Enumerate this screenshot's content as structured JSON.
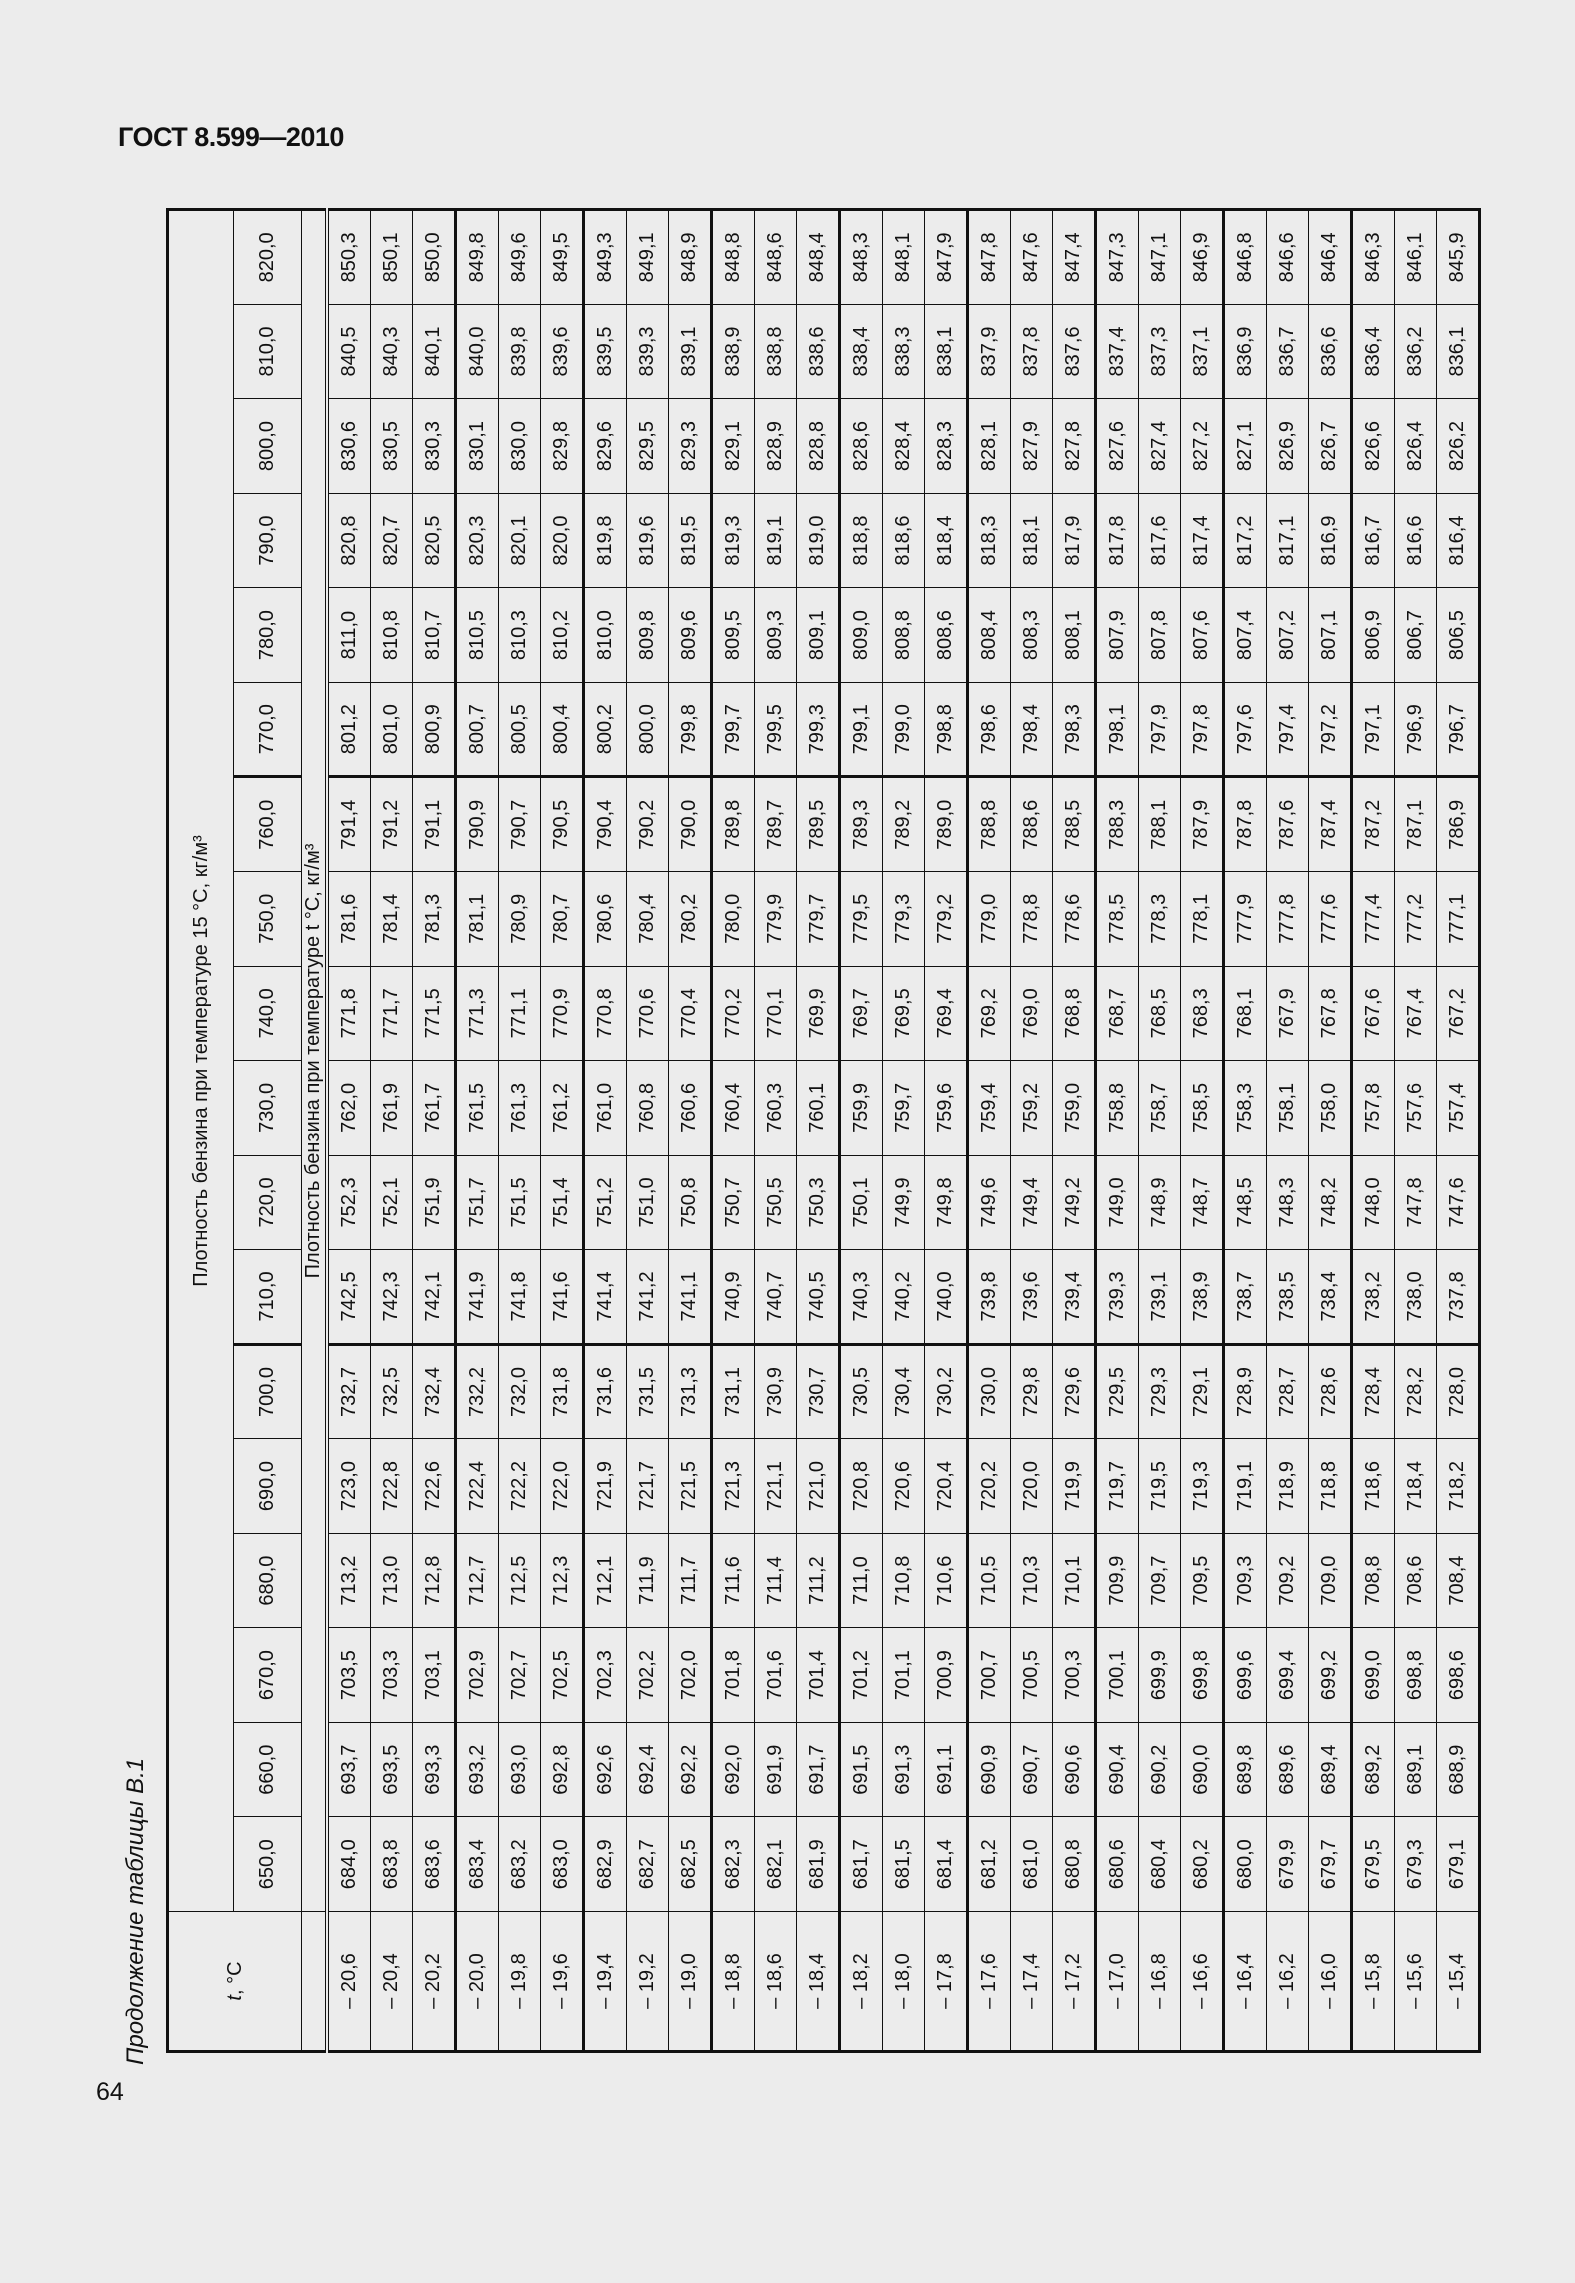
{
  "header": {
    "doc_id": "ГОСТ 8.599—2010"
  },
  "caption": "Продолжение таблицы В.1",
  "page_number": "64",
  "table": {
    "t_header": "t, °C",
    "group_header": "Плотность бензина при температуре 15 °C, кг/м³",
    "sub_header": "Плотность бензина при температуре t °C, кг/м³",
    "columns": [
      "650,0",
      "660,0",
      "670,0",
      "680,0",
      "690,0",
      "700,0",
      "710,0",
      "720,0",
      "730,0",
      "740,0",
      "750,0",
      "760,0",
      "770,0",
      "780,0",
      "790,0",
      "800,0",
      "810,0",
      "820,0"
    ],
    "rows": [
      {
        "t": "– 20,6",
        "v": [
          "684,0",
          "693,7",
          "703,5",
          "713,2",
          "723,0",
          "732,7",
          "742,5",
          "752,3",
          "762,0",
          "771,8",
          "781,6",
          "791,4",
          "801,2",
          "811,0",
          "820,8",
          "830,6",
          "840,5",
          "850,3"
        ]
      },
      {
        "t": "– 20,4",
        "v": [
          "683,8",
          "693,5",
          "703,3",
          "713,0",
          "722,8",
          "732,5",
          "742,3",
          "752,1",
          "761,9",
          "771,7",
          "781,4",
          "791,2",
          "801,0",
          "810,8",
          "820,7",
          "830,5",
          "840,3",
          "850,1"
        ]
      },
      {
        "t": "– 20,2",
        "v": [
          "683,6",
          "693,3",
          "703,1",
          "712,8",
          "722,6",
          "732,4",
          "742,1",
          "751,9",
          "761,7",
          "771,5",
          "781,3",
          "791,1",
          "800,9",
          "810,7",
          "820,5",
          "830,3",
          "840,1",
          "850,0"
        ]
      },
      {
        "t": "– 20,0",
        "v": [
          "683,4",
          "693,2",
          "702,9",
          "712,7",
          "722,4",
          "732,2",
          "741,9",
          "751,7",
          "761,5",
          "771,3",
          "781,1",
          "790,9",
          "800,7",
          "810,5",
          "820,3",
          "830,1",
          "840,0",
          "849,8"
        ]
      },
      {
        "t": "– 19,8",
        "v": [
          "683,2",
          "693,0",
          "702,7",
          "712,5",
          "722,2",
          "732,0",
          "741,8",
          "751,5",
          "761,3",
          "771,1",
          "780,9",
          "790,7",
          "800,5",
          "810,3",
          "820,1",
          "830,0",
          "839,8",
          "849,6"
        ]
      },
      {
        "t": "– 19,6",
        "v": [
          "683,0",
          "692,8",
          "702,5",
          "712,3",
          "722,0",
          "731,8",
          "741,6",
          "751,4",
          "761,2",
          "770,9",
          "780,7",
          "790,5",
          "800,4",
          "810,2",
          "820,0",
          "829,8",
          "839,6",
          "849,5"
        ]
      },
      {
        "t": "– 19,4",
        "v": [
          "682,9",
          "692,6",
          "702,3",
          "712,1",
          "721,9",
          "731,6",
          "741,4",
          "751,2",
          "761,0",
          "770,8",
          "780,6",
          "790,4",
          "800,2",
          "810,0",
          "819,8",
          "829,6",
          "839,5",
          "849,3"
        ]
      },
      {
        "t": "– 19,2",
        "v": [
          "682,7",
          "692,4",
          "702,2",
          "711,9",
          "721,7",
          "731,5",
          "741,2",
          "751,0",
          "760,8",
          "770,6",
          "780,4",
          "790,2",
          "800,0",
          "809,8",
          "819,6",
          "829,5",
          "839,3",
          "849,1"
        ]
      },
      {
        "t": "– 19,0",
        "v": [
          "682,5",
          "692,2",
          "702,0",
          "711,7",
          "721,5",
          "731,3",
          "741,1",
          "750,8",
          "760,6",
          "770,4",
          "780,2",
          "790,0",
          "799,8",
          "809,6",
          "819,5",
          "829,3",
          "839,1",
          "848,9"
        ]
      },
      {
        "t": "– 18,8",
        "v": [
          "682,3",
          "692,0",
          "701,8",
          "711,6",
          "721,3",
          "731,1",
          "740,9",
          "750,7",
          "760,4",
          "770,2",
          "780,0",
          "789,8",
          "799,7",
          "809,5",
          "819,3",
          "829,1",
          "838,9",
          "848,8"
        ]
      },
      {
        "t": "– 18,6",
        "v": [
          "682,1",
          "691,9",
          "701,6",
          "711,4",
          "721,1",
          "730,9",
          "740,7",
          "750,5",
          "760,3",
          "770,1",
          "779,9",
          "789,7",
          "799,5",
          "809,3",
          "819,1",
          "828,9",
          "838,8",
          "848,6"
        ]
      },
      {
        "t": "– 18,4",
        "v": [
          "681,9",
          "691,7",
          "701,4",
          "711,2",
          "721,0",
          "730,7",
          "740,5",
          "750,3",
          "760,1",
          "769,9",
          "779,7",
          "789,5",
          "799,3",
          "809,1",
          "819,0",
          "828,8",
          "838,6",
          "848,4"
        ]
      },
      {
        "t": "– 18,2",
        "v": [
          "681,7",
          "691,5",
          "701,2",
          "711,0",
          "720,8",
          "730,5",
          "740,3",
          "750,1",
          "759,9",
          "769,7",
          "779,5",
          "789,3",
          "799,1",
          "809,0",
          "818,8",
          "828,6",
          "838,4",
          "848,3"
        ]
      },
      {
        "t": "– 18,0",
        "v": [
          "681,5",
          "691,3",
          "701,1",
          "710,8",
          "720,6",
          "730,4",
          "740,2",
          "749,9",
          "759,7",
          "769,5",
          "779,3",
          "789,2",
          "799,0",
          "808,8",
          "818,6",
          "828,4",
          "838,3",
          "848,1"
        ]
      },
      {
        "t": "– 17,8",
        "v": [
          "681,4",
          "691,1",
          "700,9",
          "710,6",
          "720,4",
          "730,2",
          "740,0",
          "749,8",
          "759,6",
          "769,4",
          "779,2",
          "789,0",
          "798,8",
          "808,6",
          "818,4",
          "828,3",
          "838,1",
          "847,9"
        ]
      },
      {
        "t": "– 17,6",
        "v": [
          "681,2",
          "690,9",
          "700,7",
          "710,5",
          "720,2",
          "730,0",
          "739,8",
          "749,6",
          "759,4",
          "769,2",
          "779,0",
          "788,8",
          "798,6",
          "808,4",
          "818,3",
          "828,1",
          "837,9",
          "847,8"
        ]
      },
      {
        "t": "– 17,4",
        "v": [
          "681,0",
          "690,7",
          "700,5",
          "710,3",
          "720,0",
          "729,8",
          "739,6",
          "749,4",
          "759,2",
          "769,0",
          "778,8",
          "788,6",
          "798,4",
          "808,3",
          "818,1",
          "827,9",
          "837,8",
          "847,6"
        ]
      },
      {
        "t": "– 17,2",
        "v": [
          "680,8",
          "690,6",
          "700,3",
          "710,1",
          "719,9",
          "729,6",
          "739,4",
          "749,2",
          "759,0",
          "768,8",
          "778,6",
          "788,5",
          "798,3",
          "808,1",
          "817,9",
          "827,8",
          "837,6",
          "847,4"
        ]
      },
      {
        "t": "– 17,0",
        "v": [
          "680,6",
          "690,4",
          "700,1",
          "709,9",
          "719,7",
          "729,5",
          "739,3",
          "749,0",
          "758,8",
          "768,7",
          "778,5",
          "788,3",
          "798,1",
          "807,9",
          "817,8",
          "827,6",
          "837,4",
          "847,3"
        ]
      },
      {
        "t": "– 16,8",
        "v": [
          "680,4",
          "690,2",
          "699,9",
          "709,7",
          "719,5",
          "729,3",
          "739,1",
          "748,9",
          "758,7",
          "768,5",
          "778,3",
          "788,1",
          "797,9",
          "807,8",
          "817,6",
          "827,4",
          "837,3",
          "847,1"
        ]
      },
      {
        "t": "– 16,6",
        "v": [
          "680,2",
          "690,0",
          "699,8",
          "709,5",
          "719,3",
          "729,1",
          "738,9",
          "748,7",
          "758,5",
          "768,3",
          "778,1",
          "787,9",
          "797,8",
          "807,6",
          "817,4",
          "827,2",
          "837,1",
          "846,9"
        ]
      },
      {
        "t": "– 16,4",
        "v": [
          "680,0",
          "689,8",
          "699,6",
          "709,3",
          "719,1",
          "728,9",
          "738,7",
          "748,5",
          "758,3",
          "768,1",
          "777,9",
          "787,8",
          "797,6",
          "807,4",
          "817,2",
          "827,1",
          "836,9",
          "846,8"
        ]
      },
      {
        "t": "– 16,2",
        "v": [
          "679,9",
          "689,6",
          "699,4",
          "709,2",
          "718,9",
          "728,7",
          "738,5",
          "748,3",
          "758,1",
          "767,9",
          "777,8",
          "787,6",
          "797,4",
          "807,2",
          "817,1",
          "826,9",
          "836,7",
          "846,6"
        ]
      },
      {
        "t": "– 16,0",
        "v": [
          "679,7",
          "689,4",
          "699,2",
          "709,0",
          "718,8",
          "728,6",
          "738,4",
          "748,2",
          "758,0",
          "767,8",
          "777,6",
          "787,4",
          "797,2",
          "807,1",
          "816,9",
          "826,7",
          "836,6",
          "846,4"
        ]
      },
      {
        "t": "– 15,8",
        "v": [
          "679,5",
          "689,2",
          "699,0",
          "708,8",
          "718,6",
          "728,4",
          "738,2",
          "748,0",
          "757,8",
          "767,6",
          "777,4",
          "787,2",
          "797,1",
          "806,9",
          "816,7",
          "826,6",
          "836,4",
          "846,3"
        ]
      },
      {
        "t": "– 15,6",
        "v": [
          "679,3",
          "689,1",
          "698,8",
          "708,6",
          "718,4",
          "728,2",
          "738,0",
          "747,8",
          "757,6",
          "767,4",
          "777,2",
          "787,1",
          "796,9",
          "806,7",
          "816,6",
          "826,4",
          "836,2",
          "846,1"
        ]
      },
      {
        "t": "– 15,4",
        "v": [
          "679,1",
          "688,9",
          "698,6",
          "708,4",
          "718,2",
          "728,0",
          "737,8",
          "747,6",
          "757,4",
          "767,2",
          "777,1",
          "786,9",
          "796,7",
          "806,5",
          "816,4",
          "826,2",
          "836,1",
          "845,9"
        ]
      }
    ]
  }
}
